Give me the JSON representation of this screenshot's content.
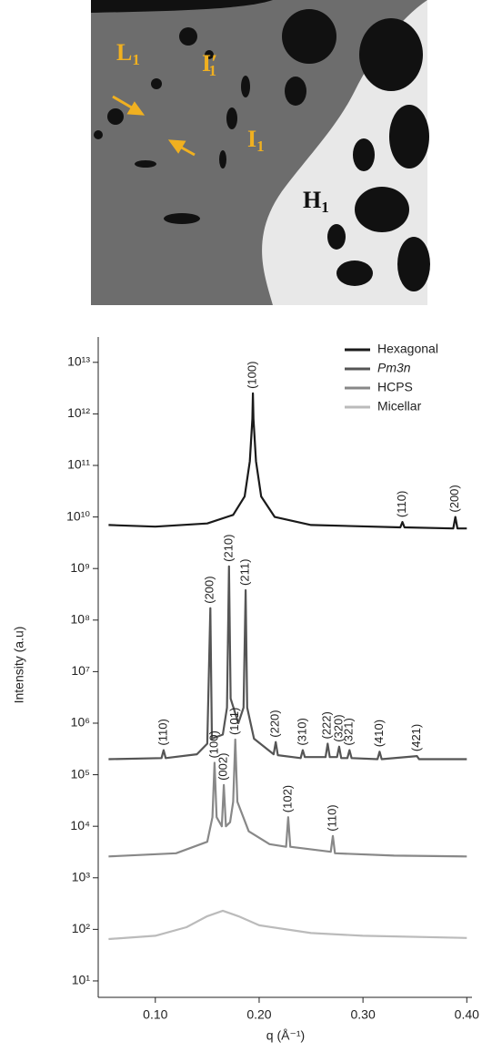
{
  "micrograph": {
    "labels": [
      {
        "text": "L",
        "sub": "1"
      },
      {
        "text": "I′",
        "sub": "1"
      },
      {
        "text": "I",
        "sub": "1"
      },
      {
        "text": "H",
        "sub": "1"
      }
    ]
  },
  "chart_data": {
    "type": "line",
    "x_label": "q (Å⁻¹)",
    "y_label": "Intensity (a.u)",
    "xlim": [
      0.045,
      0.405
    ],
    "ylim": [
      4.8,
      31000000000000.0
    ],
    "log_y": true,
    "legend": "top-right",
    "xticks": [
      {
        "value": 0.1,
        "label": "0.10"
      },
      {
        "value": 0.2,
        "label": "0.20"
      },
      {
        "value": 0.3,
        "label": "0.30"
      },
      {
        "value": 0.4,
        "label": "0.40"
      }
    ],
    "yticks": [
      {
        "value": 10,
        "label": "10¹"
      },
      {
        "value": 100,
        "label": "10²"
      },
      {
        "value": 1000,
        "label": "10³"
      },
      {
        "value": 10000,
        "label": "10⁴"
      },
      {
        "value": 100000,
        "label": "10⁵"
      },
      {
        "value": 1000000,
        "label": "10⁶"
      },
      {
        "value": 10000000,
        "label": "10⁷"
      },
      {
        "value": 100000000,
        "label": "10⁸"
      },
      {
        "value": 1000000000,
        "label": "10⁹"
      },
      {
        "value": 10000000000,
        "label": "10¹⁰"
      },
      {
        "value": 100000000000,
        "label": "10¹¹"
      },
      {
        "value": 1000000000000,
        "label": "10¹²"
      },
      {
        "value": 10000000000000,
        "label": "10¹³"
      }
    ],
    "series": [
      {
        "name": "Hexagonal",
        "color": "#1a1a1a",
        "x": [
          0.055,
          0.1,
          0.15,
          0.175,
          0.186,
          0.191,
          0.1935,
          0.194,
          0.1945,
          0.197,
          0.202,
          0.215,
          0.25,
          0.336,
          0.338,
          0.34,
          0.387,
          0.389,
          0.391,
          0.4
        ],
        "values": [
          7000000000.0,
          6500000000.0,
          7500000000.0,
          11000000000.0,
          25000000000.0,
          120000000000.0,
          800000000000.0,
          2500000000000.0,
          800000000000.0,
          120000000000.0,
          25000000000.0,
          10000000000.0,
          7000000000.0,
          6300000000.0,
          8000000000.0,
          6300000000.0,
          6000000000.0,
          10000000000.0,
          6000000000.0,
          6000000000.0
        ],
        "annotations": [
          {
            "text": "(100)",
            "x": 0.194
          },
          {
            "text": "(110)",
            "x": 0.338
          },
          {
            "text": "(200)",
            "x": 0.389
          }
        ]
      },
      {
        "name": "Pm3n",
        "color": "#555555",
        "italic": true,
        "x": [
          0.055,
          0.106,
          0.108,
          0.11,
          0.14,
          0.15,
          0.153,
          0.1545,
          0.165,
          0.169,
          0.171,
          0.1725,
          0.18,
          0.185,
          0.187,
          0.1885,
          0.195,
          0.214,
          0.216,
          0.218,
          0.24,
          0.242,
          0.244,
          0.264,
          0.266,
          0.268,
          0.275,
          0.277,
          0.279,
          0.285,
          0.287,
          0.289,
          0.314,
          0.316,
          0.318,
          0.352,
          0.354,
          0.4
        ],
        "values": [
          200000.0,
          210000.0,
          300000.0,
          210000.0,
          250000.0,
          400000.0,
          170000000.0,
          500000.0,
          600000.0,
          2000000.0,
          1100000000.0,
          3000000.0,
          1000000.0,
          2000000.0,
          380000000.0,
          2000000.0,
          500000.0,
          250000.0,
          430000.0,
          240000.0,
          210000.0,
          300000.0,
          220000.0,
          220000.0,
          400000.0,
          220000.0,
          220000.0,
          350000.0,
          210000.0,
          210000.0,
          300000.0,
          210000.0,
          200000.0,
          280000.0,
          200000.0,
          230000.0,
          200000.0,
          200000.0
        ],
        "annotations": [
          {
            "text": "(110)",
            "x": 0.108
          },
          {
            "text": "(200)",
            "x": 0.153
          },
          {
            "text": "(210)",
            "x": 0.171
          },
          {
            "text": "(211)",
            "x": 0.187
          },
          {
            "text": "(220)",
            "x": 0.216
          },
          {
            "text": "(310)",
            "x": 0.242
          },
          {
            "text": "(222)",
            "x": 0.266
          },
          {
            "text": "(320)",
            "x": 0.277
          },
          {
            "text": "(321)",
            "x": 0.287
          },
          {
            "text": "(410)",
            "x": 0.316
          },
          {
            "text": "(421)",
            "x": 0.352
          }
        ]
      },
      {
        "name": "HCPS",
        "color": "#888888",
        "x": [
          0.055,
          0.12,
          0.15,
          0.155,
          0.157,
          0.159,
          0.164,
          0.166,
          0.168,
          0.172,
          0.175,
          0.177,
          0.179,
          0.19,
          0.21,
          0.226,
          0.228,
          0.23,
          0.269,
          0.271,
          0.273,
          0.33,
          0.4
        ],
        "values": [
          2600.0,
          3000.0,
          5000.0,
          15000.0,
          170000.0,
          15000.0,
          10000.0,
          63000.0,
          10000.0,
          12000.0,
          30000.0,
          480000.0,
          30000.0,
          8000.0,
          4500.0,
          4000.0,
          15000.0,
          4000.0,
          3200.0,
          6500.0,
          3000.0,
          2700.0,
          2600.0
        ],
        "annotations": [
          {
            "text": "(100)",
            "x": 0.157
          },
          {
            "text": "(002)",
            "x": 0.166
          },
          {
            "text": "(101)",
            "x": 0.177
          },
          {
            "text": "(102)",
            "x": 0.228
          },
          {
            "text": "(110)",
            "x": 0.271
          }
        ]
      },
      {
        "name": "Micellar",
        "color": "#bbbbbb",
        "x": [
          0.055,
          0.1,
          0.13,
          0.15,
          0.165,
          0.18,
          0.2,
          0.25,
          0.3,
          0.4
        ],
        "values": [
          65,
          75,
          110,
          180,
          230,
          180,
          120,
          85,
          75,
          68
        ]
      }
    ]
  }
}
